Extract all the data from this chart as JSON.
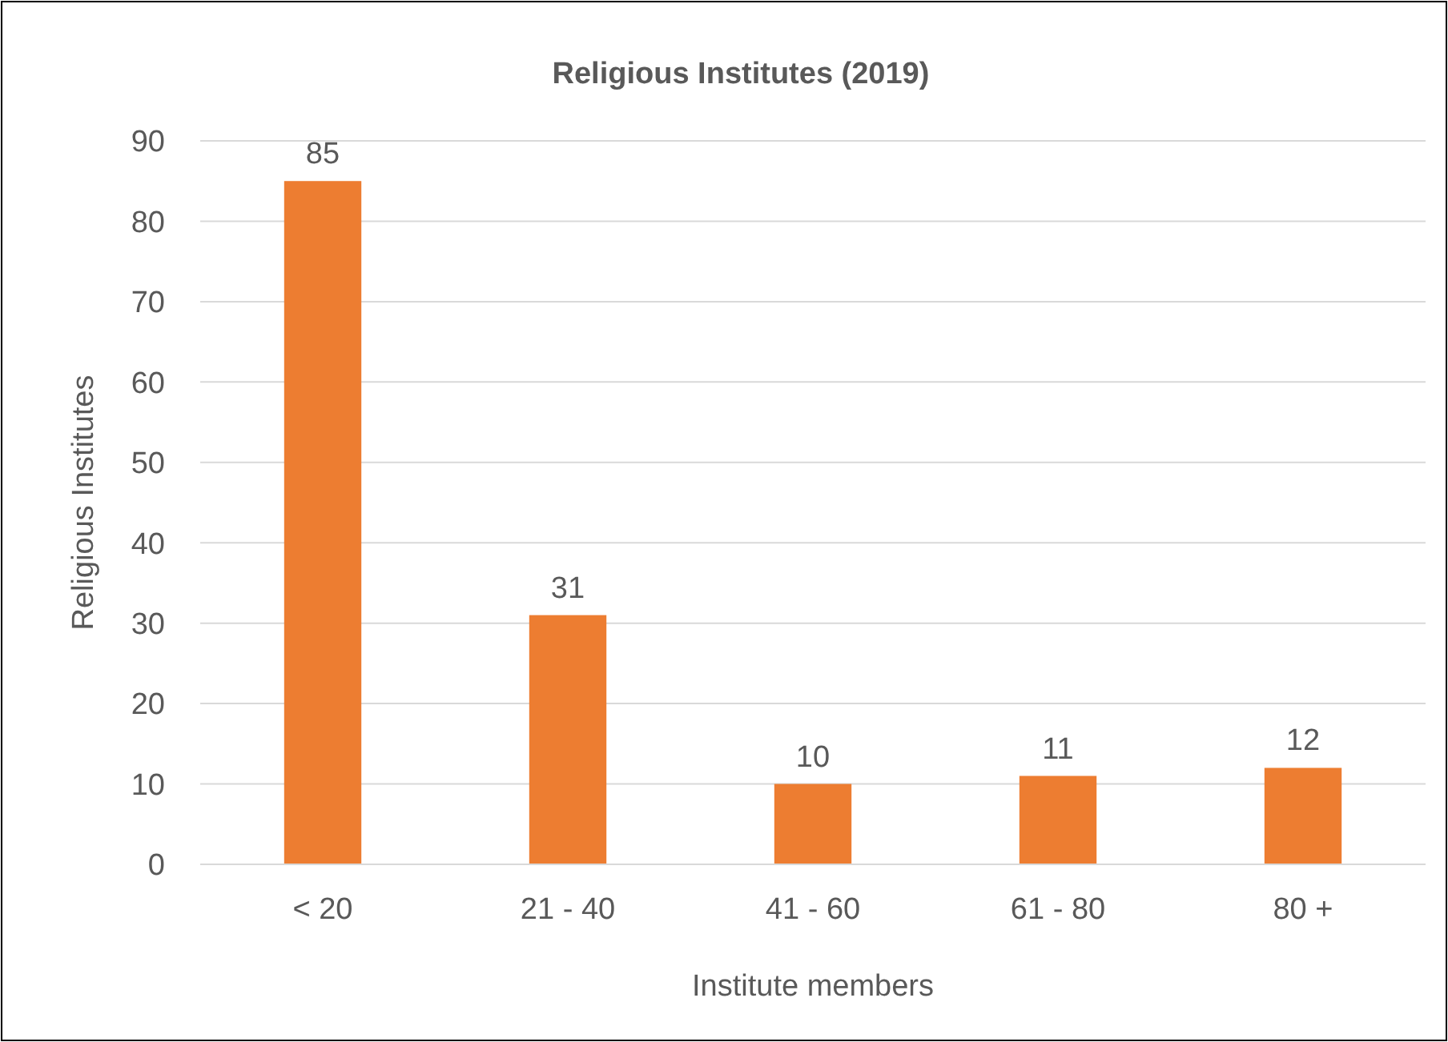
{
  "chart_data": {
    "type": "bar",
    "title": "Religious Institutes (2019)",
    "xlabel": "Institute members",
    "ylabel": "Religious Institutes",
    "categories": [
      "< 20",
      "21 - 40",
      "41 - 60",
      "61 - 80",
      "80 +"
    ],
    "values": [
      85,
      31,
      10,
      11,
      12
    ],
    "color": "#ed7d31",
    "ylim": [
      0,
      90
    ],
    "yticks": [
      0,
      10,
      20,
      30,
      40,
      50,
      60,
      70,
      80,
      90
    ],
    "grid": "y",
    "data_labels": true
  }
}
